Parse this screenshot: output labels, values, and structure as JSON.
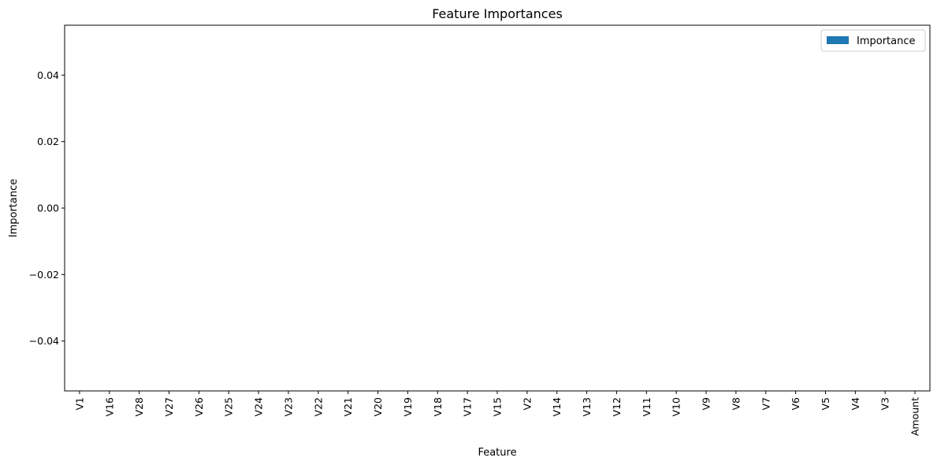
{
  "chart_data": {
    "type": "bar",
    "title": "Feature Importances",
    "xlabel": "Feature",
    "ylabel": "Importance",
    "categories": [
      "V1",
      "V16",
      "V28",
      "V27",
      "V26",
      "V25",
      "V24",
      "V23",
      "V22",
      "V21",
      "V20",
      "V19",
      "V18",
      "V17",
      "V15",
      "V2",
      "V14",
      "V13",
      "V12",
      "V11",
      "V10",
      "V9",
      "V8",
      "V7",
      "V6",
      "V5",
      "V4",
      "V3",
      "Amount"
    ],
    "series": [
      {
        "name": "Importance",
        "color": "#1f77b4",
        "values": [
          0,
          0,
          0,
          0,
          0,
          0,
          0,
          0,
          0,
          0,
          0,
          0,
          0,
          0,
          0,
          0,
          0,
          0,
          0,
          0,
          0,
          0,
          0,
          0,
          0,
          0,
          0,
          0,
          0
        ]
      }
    ],
    "ylim": [
      -0.055,
      0.055
    ],
    "yticks": [
      -0.04,
      -0.02,
      0.0,
      0.02,
      0.04
    ],
    "ytick_labels": [
      "−0.04",
      "−0.02",
      "0.00",
      "0.02",
      "0.04"
    ],
    "grid": false,
    "legend": "top-right"
  }
}
